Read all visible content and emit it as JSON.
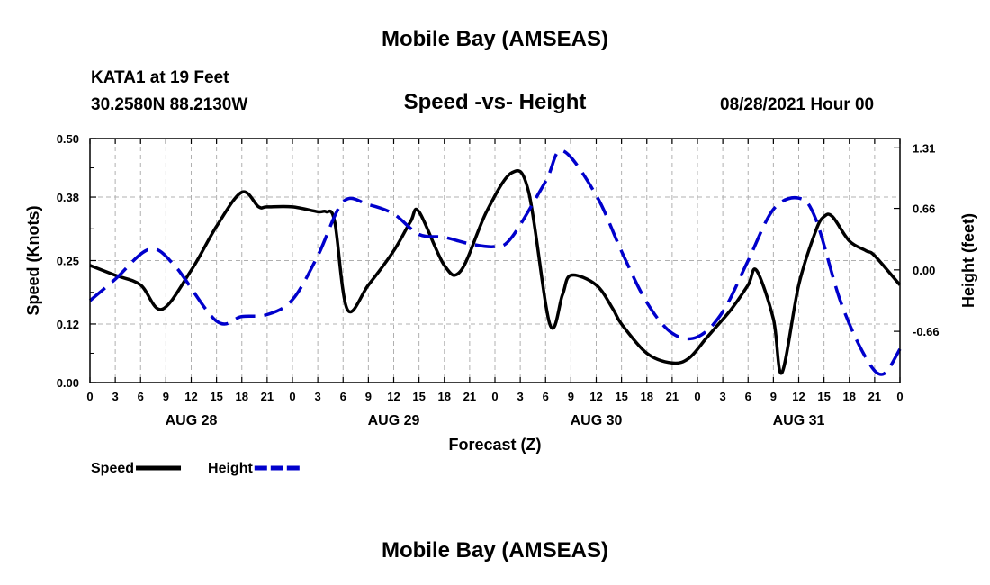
{
  "header": {
    "title": "Mobile Bay (AMSEAS)",
    "station": "KATA1 at 19 Feet",
    "coords": "30.2580N  88.2130W",
    "subtitle": "Speed -vs- Height",
    "datetime": "08/28/2021 Hour 00"
  },
  "footer": {
    "title": "Mobile Bay (AMSEAS)"
  },
  "chart_data": {
    "type": "line",
    "title": "Speed -vs- Height",
    "xlabel": "Forecast (Z)",
    "ylabel": "Speed (Knots)",
    "ylabel_right": "Height (feet)",
    "grid": true,
    "legend_position": "bottom-left",
    "x_ticks": [
      "0",
      "3",
      "6",
      "9",
      "12",
      "15",
      "18",
      "21",
      "0",
      "3",
      "6",
      "9",
      "12",
      "15",
      "18",
      "21",
      "0",
      "3",
      "6",
      "9",
      "12",
      "15",
      "18",
      "21",
      "0",
      "3",
      "6",
      "9",
      "12",
      "15",
      "18",
      "21",
      "0"
    ],
    "x_day_labels": [
      {
        "label": "AUG 28",
        "hour": 12
      },
      {
        "label": "AUG 29",
        "hour": 36
      },
      {
        "label": "AUG 30",
        "hour": 60
      },
      {
        "label": "AUG 31",
        "hour": 84
      }
    ],
    "xlim": [
      0,
      96
    ],
    "y_left": {
      "ticks": [
        "0.00",
        "0.12",
        "0.25",
        "0.38",
        "0.50"
      ],
      "lim": [
        0,
        0.5
      ]
    },
    "y_right": {
      "ticks": [
        "-0.66",
        "0.00",
        "0.66",
        "1.31"
      ],
      "lim": [
        -1.21,
        1.41
      ]
    },
    "series": [
      {
        "name": "Speed",
        "axis": "left",
        "color": "#000000",
        "style": "solid",
        "x": [
          0,
          3,
          6,
          8.5,
          12,
          15,
          18,
          20,
          21,
          24,
          27,
          28,
          29,
          30.5,
          33,
          36,
          38,
          39,
          42,
          44,
          47,
          50,
          52,
          54.5,
          56,
          57,
          60,
          62,
          63,
          66,
          69,
          71,
          73,
          74,
          76,
          78,
          79,
          81,
          82,
          84,
          86,
          87,
          88,
          90,
          92,
          93,
          96
        ],
        "y": [
          0.24,
          0.22,
          0.2,
          0.15,
          0.23,
          0.32,
          0.39,
          0.36,
          0.36,
          0.36,
          0.35,
          0.35,
          0.33,
          0.15,
          0.2,
          0.27,
          0.33,
          0.35,
          0.24,
          0.23,
          0.35,
          0.43,
          0.39,
          0.12,
          0.18,
          0.22,
          0.2,
          0.15,
          0.12,
          0.06,
          0.04,
          0.05,
          0.09,
          0.11,
          0.15,
          0.2,
          0.23,
          0.13,
          0.02,
          0.2,
          0.31,
          0.34,
          0.34,
          0.29,
          0.27,
          0.26,
          0.2
        ]
      },
      {
        "name": "Height",
        "axis": "right",
        "color": "#0000cc",
        "style": "dashed",
        "x": [
          0,
          3,
          7,
          10,
          15,
          18,
          21,
          24,
          27,
          30,
          33,
          36,
          39,
          42,
          45,
          48,
          50,
          54,
          56,
          60,
          63,
          66,
          69,
          72,
          75,
          78,
          81,
          84,
          86,
          89,
          92,
          94,
          96
        ],
        "y": [
          -0.33,
          -0.1,
          0.22,
          0.05,
          -0.55,
          -0.5,
          -0.48,
          -0.32,
          0.15,
          0.73,
          0.7,
          0.6,
          0.38,
          0.35,
          0.28,
          0.25,
          0.35,
          0.95,
          1.28,
          0.8,
          0.2,
          -0.35,
          -0.68,
          -0.72,
          -0.45,
          0.1,
          0.65,
          0.77,
          0.55,
          -0.35,
          -0.95,
          -1.12,
          -0.85
        ]
      }
    ]
  }
}
